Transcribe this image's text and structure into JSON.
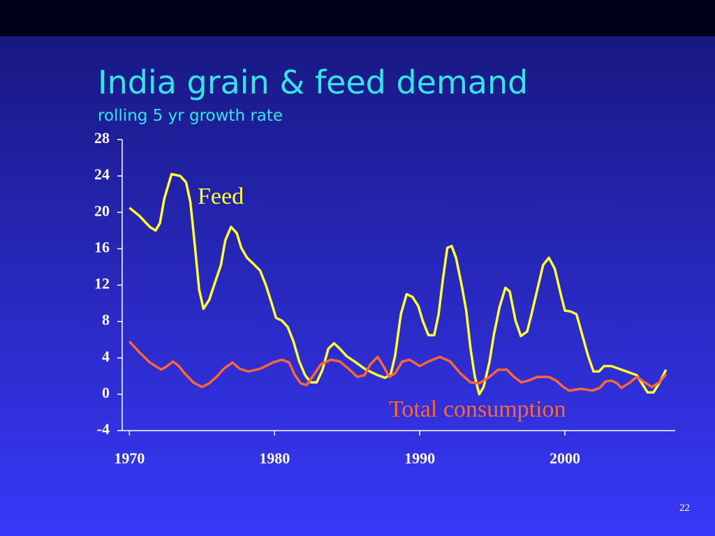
{
  "chart_data": {
    "type": "line",
    "title": "India grain & feed demand",
    "subtitle": "rolling 5 yr growth rate",
    "page_number": "22",
    "xlim": [
      1969.5,
      2007.6
    ],
    "xticks": [
      1970,
      1980,
      1990,
      2000
    ],
    "ylim": [
      -4,
      28
    ],
    "yticks": [
      -4,
      0,
      4,
      8,
      12,
      16,
      20,
      24,
      28
    ],
    "grid": false,
    "series": [
      {
        "name": "Feed",
        "color": "#ffff33",
        "x": [
          1970,
          1970.7,
          1971.4,
          1971.8,
          1972.1,
          1972.4,
          1972.9,
          1973.5,
          1973.9,
          1974.2,
          1974.5,
          1974.8,
          1975.1,
          1975.5,
          1975.9,
          1976.3,
          1976.6,
          1977.0,
          1977.4,
          1977.7,
          1978.1,
          1978.5,
          1979.0,
          1979.4,
          1979.8,
          1980.1,
          1980.5,
          1980.9,
          1981.3,
          1981.7,
          1982.1,
          1982.5,
          1982.9,
          1983.3,
          1983.7,
          1984.1,
          1984.5,
          1984.95,
          1985.6,
          1986.3,
          1987.1,
          1987.6,
          1988.0,
          1988.3,
          1988.7,
          1989.1,
          1989.5,
          1989.9,
          1990.2,
          1990.6,
          1991.0,
          1991.3,
          1991.6,
          1991.9,
          1992.2,
          1992.5,
          1992.9,
          1993.2,
          1993.5,
          1993.8,
          1994.1,
          1994.4,
          1994.8,
          1995.1,
          1995.5,
          1995.9,
          1996.2,
          1996.6,
          1996.97,
          1997.4,
          1997.7,
          1998.1,
          1998.5,
          1998.9,
          1999.3,
          1999.7,
          2000.0,
          2000.4,
          2000.8,
          2001.2,
          2001.6,
          2001.97,
          2002.35,
          2002.7,
          2003.2,
          2003.9,
          2004.6,
          2004.95,
          2005.3,
          2005.7,
          2006.1,
          2006.5,
          2006.97
        ],
        "values": [
          20.5,
          19.6,
          18.4,
          18.0,
          18.8,
          21.5,
          24.2,
          24.0,
          23.3,
          21.1,
          16.5,
          11.5,
          9.4,
          10.4,
          12.3,
          14.2,
          16.9,
          18.4,
          17.7,
          16.1,
          15.0,
          14.4,
          13.6,
          12.0,
          10.0,
          8.4,
          8.1,
          7.4,
          5.8,
          3.6,
          2.1,
          1.3,
          1.3,
          2.7,
          5.0,
          5.6,
          5.0,
          4.2,
          3.5,
          2.7,
          2.1,
          1.8,
          2.2,
          4.2,
          8.8,
          11.0,
          10.7,
          9.7,
          8.1,
          6.5,
          6.5,
          8.8,
          12.7,
          16.1,
          16.3,
          15.0,
          11.9,
          9.2,
          5.0,
          1.9,
          0,
          0.8,
          3.5,
          6.5,
          9.6,
          11.7,
          11.3,
          8.1,
          6.4,
          6.9,
          8.8,
          11.5,
          14.2,
          15.0,
          13.8,
          11.1,
          9.2,
          9.1,
          8.8,
          6.5,
          4.2,
          2.5,
          2.5,
          3.1,
          3.1,
          2.7,
          2.3,
          2.1,
          1.2,
          0.2,
          0.2,
          1.2,
          2.7
        ]
      },
      {
        "name": "Total consumption",
        "color": "#ff6633",
        "x": [
          1970,
          1970.7,
          1971.4,
          1972.2,
          1972.6,
          1973.0,
          1973.4,
          1973.8,
          1974.4,
          1975.0,
          1975.5,
          1976.0,
          1976.5,
          1977.1,
          1977.6,
          1978.2,
          1979.0,
          1979.9,
          1980.5,
          1981.0,
          1981.4,
          1981.8,
          1982.2,
          1982.6,
          1983.2,
          1983.9,
          1984.5,
          1985.1,
          1985.7,
          1986.2,
          1986.6,
          1987.1,
          1987.5,
          1987.9,
          1988.3,
          1988.8,
          1989.3,
          1990.0,
          1990.6,
          1991.4,
          1992.1,
          1992.8,
          1993.5,
          1994.1,
          1994.8,
          1995.4,
          1996.0,
          1996.5,
          1997.0,
          1997.5,
          1998.1,
          1998.9,
          1999.4,
          1999.9,
          2000.3,
          2001.1,
          2001.9,
          2002.4,
          2002.8,
          2003.2,
          2003.6,
          2003.9,
          2004.4,
          2004.95,
          2005.5,
          2006.0,
          2006.5,
          2006.97
        ],
        "values": [
          5.8,
          4.6,
          3.5,
          2.7,
          3.1,
          3.6,
          3.1,
          2.3,
          1.3,
          0.8,
          1.2,
          1.9,
          2.8,
          3.5,
          2.8,
          2.5,
          2.8,
          3.5,
          3.8,
          3.5,
          2.1,
          1.2,
          1.0,
          1.9,
          3.3,
          3.8,
          3.6,
          2.8,
          1.9,
          2.1,
          3.3,
          4.1,
          3.1,
          1.9,
          2.3,
          3.6,
          3.8,
          3.1,
          3.6,
          4.1,
          3.6,
          2.3,
          1.3,
          1.2,
          1.9,
          2.7,
          2.7,
          1.9,
          1.3,
          1.5,
          1.9,
          1.9,
          1.5,
          0.8,
          0.4,
          0.6,
          0.4,
          0.7,
          1.4,
          1.5,
          1.2,
          0.7,
          1.2,
          1.9,
          1.3,
          0.8,
          1.3,
          2.2
        ]
      }
    ]
  }
}
